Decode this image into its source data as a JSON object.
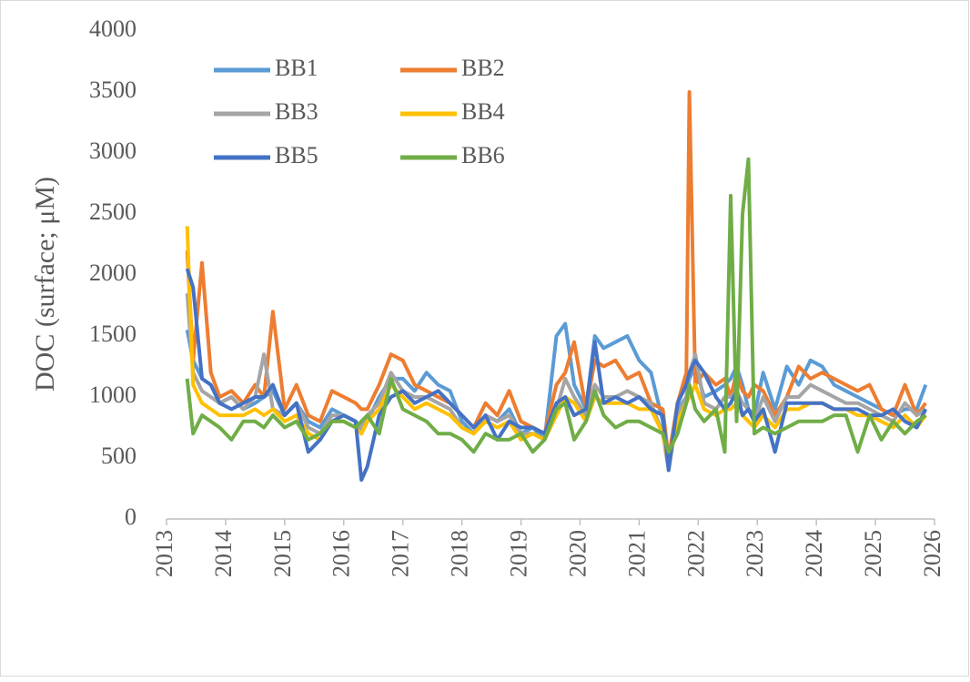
{
  "chart_data": {
    "type": "line",
    "ylabel": "DOC (surface; μM)",
    "xlim": [
      2013,
      2026
    ],
    "xticks": [
      2013,
      2014,
      2015,
      2016,
      2017,
      2018,
      2019,
      2020,
      2021,
      2022,
      2023,
      2024,
      2025,
      2026
    ],
    "ylim": [
      0,
      4000
    ],
    "yticks": [
      0,
      500,
      1000,
      1500,
      2000,
      2500,
      3000,
      3500,
      4000
    ],
    "grid": false,
    "legend": "upper left",
    "x": [
      2013.35,
      2013.45,
      2013.6,
      2013.75,
      2013.9,
      2014.1,
      2014.3,
      2014.5,
      2014.65,
      2014.8,
      2015.0,
      2015.2,
      2015.4,
      2015.6,
      2015.8,
      2016.0,
      2016.2,
      2016.3,
      2016.4,
      2016.6,
      2016.8,
      2017.0,
      2017.2,
      2017.4,
      2017.6,
      2017.8,
      2018.0,
      2018.2,
      2018.4,
      2018.6,
      2018.8,
      2019.0,
      2019.2,
      2019.4,
      2019.6,
      2019.75,
      2019.9,
      2020.1,
      2020.25,
      2020.4,
      2020.6,
      2020.8,
      2021.0,
      2021.2,
      2021.4,
      2021.5,
      2021.65,
      2021.8,
      2021.85,
      2021.95,
      2022.1,
      2022.3,
      2022.45,
      2022.55,
      2022.65,
      2022.75,
      2022.85,
      2022.95,
      2023.1,
      2023.3,
      2023.5,
      2023.7,
      2023.9,
      2024.1,
      2024.3,
      2024.5,
      2024.7,
      2024.9,
      2025.1,
      2025.3,
      2025.5,
      2025.7,
      2025.85
    ],
    "series": [
      {
        "name": "BB1",
        "color": "#5B9BD5",
        "values": [
          1550,
          1300,
          1150,
          1100,
          950,
          1000,
          900,
          950,
          1000,
          1050,
          850,
          950,
          800,
          750,
          900,
          850,
          800,
          700,
          800,
          1000,
          1150,
          1150,
          1050,
          1200,
          1100,
          1050,
          800,
          700,
          850,
          800,
          900,
          700,
          750,
          650,
          1500,
          1600,
          1100,
          900,
          1500,
          1400,
          1450,
          1500,
          1300,
          1200,
          800,
          450,
          900,
          1000,
          1150,
          1250,
          1000,
          1050,
          1100,
          1150,
          1250,
          1100,
          900,
          850,
          1200,
          900,
          1250,
          1100,
          1300,
          1250,
          1100,
          1050,
          1000,
          950,
          900,
          850,
          900,
          900,
          1100
        ]
      },
      {
        "name": "BB2",
        "color": "#ED7D31",
        "values": [
          2200,
          1300,
          2100,
          1200,
          1000,
          1050,
          950,
          1100,
          1000,
          1700,
          900,
          1100,
          850,
          800,
          1050,
          1000,
          950,
          900,
          900,
          1100,
          1350,
          1300,
          1100,
          1050,
          1000,
          950,
          850,
          750,
          950,
          850,
          1050,
          800,
          750,
          700,
          1100,
          1200,
          1450,
          900,
          1300,
          1250,
          1300,
          1150,
          1200,
          950,
          900,
          500,
          950,
          1200,
          3500,
          1100,
          1200,
          1100,
          1150,
          1000,
          1200,
          1050,
          1000,
          1100,
          1050,
          850,
          1000,
          1250,
          1150,
          1200,
          1150,
          1100,
          1050,
          1100,
          900,
          850,
          1100,
          850,
          950
        ]
      },
      {
        "name": "BB3",
        "color": "#A5A5A5",
        "values": [
          1850,
          1200,
          1050,
          1000,
          950,
          1000,
          900,
          1000,
          1350,
          900,
          850,
          950,
          750,
          700,
          850,
          850,
          800,
          750,
          850,
          950,
          1200,
          1050,
          1000,
          1000,
          950,
          900,
          750,
          700,
          850,
          800,
          850,
          700,
          700,
          650,
          900,
          1150,
          1000,
          850,
          1100,
          1000,
          1000,
          1050,
          1000,
          950,
          700,
          400,
          850,
          1000,
          1200,
          1350,
          950,
          900,
          1000,
          1000,
          1050,
          950,
          900,
          800,
          1000,
          800,
          1000,
          1000,
          1100,
          1050,
          1000,
          950,
          950,
          900,
          850,
          800,
          950,
          850,
          900
        ]
      },
      {
        "name": "BB4",
        "color": "#FFC000",
        "values": [
          2400,
          1100,
          950,
          900,
          850,
          850,
          850,
          900,
          850,
          900,
          800,
          850,
          700,
          650,
          800,
          800,
          750,
          700,
          800,
          900,
          1100,
          1000,
          900,
          950,
          900,
          850,
          750,
          700,
          800,
          750,
          800,
          650,
          700,
          650,
          850,
          1000,
          950,
          800,
          1000,
          950,
          950,
          950,
          900,
          900,
          700,
          450,
          800,
          950,
          1000,
          1100,
          900,
          850,
          900,
          900,
          950,
          850,
          800,
          750,
          850,
          750,
          900,
          900,
          950,
          950,
          900,
          900,
          850,
          850,
          800,
          750,
          850,
          750,
          850
        ]
      },
      {
        "name": "BB5",
        "color": "#4472C4",
        "values": [
          2050,
          1900,
          1150,
          1100,
          950,
          900,
          950,
          1000,
          1000,
          1100,
          850,
          950,
          550,
          650,
          800,
          850,
          800,
          320,
          430,
          850,
          1000,
          1050,
          950,
          1000,
          1050,
          950,
          850,
          750,
          850,
          650,
          800,
          750,
          750,
          700,
          950,
          1000,
          850,
          900,
          1450,
          950,
          1000,
          950,
          1000,
          900,
          850,
          400,
          950,
          1100,
          1200,
          1300,
          1200,
          1000,
          900,
          950,
          1050,
          850,
          900,
          800,
          900,
          550,
          950,
          950,
          950,
          950,
          900,
          900,
          900,
          850,
          850,
          900,
          800,
          750,
          900
        ]
      },
      {
        "name": "BB6",
        "color": "#70AD47",
        "values": [
          1150,
          700,
          850,
          800,
          750,
          650,
          800,
          800,
          750,
          850,
          750,
          800,
          650,
          700,
          800,
          800,
          750,
          800,
          850,
          700,
          1150,
          900,
          850,
          800,
          700,
          700,
          650,
          550,
          700,
          650,
          650,
          700,
          550,
          650,
          900,
          950,
          650,
          800,
          1050,
          850,
          750,
          800,
          800,
          750,
          700,
          550,
          700,
          950,
          1100,
          900,
          800,
          900,
          550,
          2650,
          800,
          2500,
          2950,
          700,
          750,
          700,
          750,
          800,
          800,
          800,
          850,
          850,
          550,
          850,
          650,
          800,
          700,
          800,
          850
        ]
      }
    ]
  }
}
